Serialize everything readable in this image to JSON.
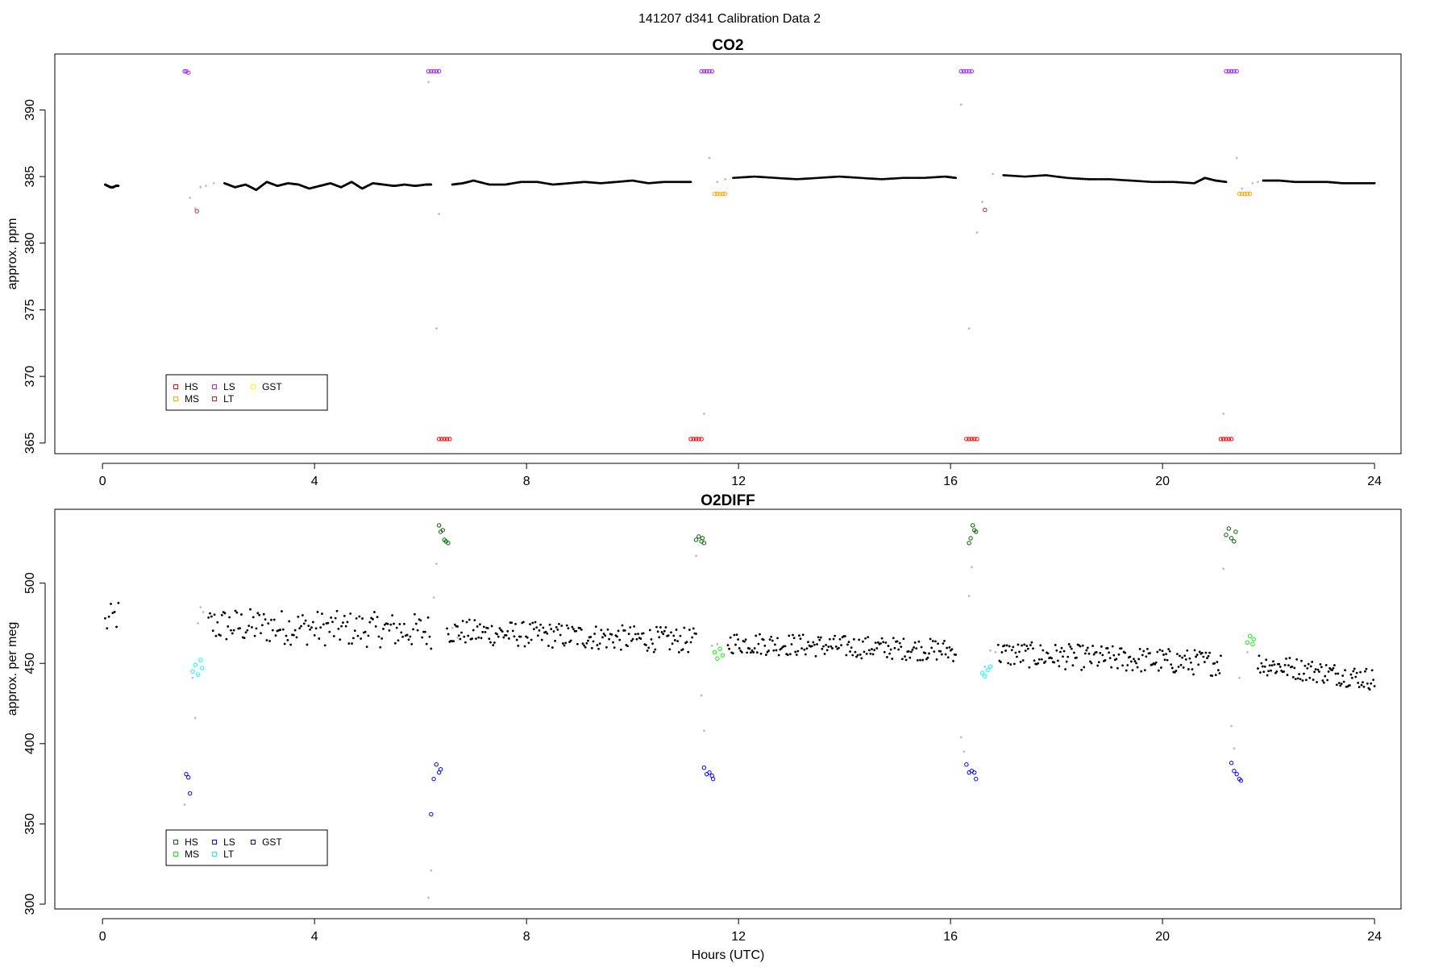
{
  "figure": {
    "title": "141207   d341   Calibration Data 2"
  },
  "chart_data": [
    {
      "type": "scatter",
      "title": "CO2",
      "xlabel": "",
      "ylabel": "approx. ppm",
      "xlim": [
        -0.9,
        24.5
      ],
      "ylim": [
        364.2,
        394.2
      ],
      "xticks": [
        0,
        4,
        8,
        12,
        16,
        20,
        24
      ],
      "yticks": [
        365,
        370,
        375,
        380,
        385,
        390
      ],
      "legend": {
        "position": "bottom-left",
        "entries": [
          {
            "label": "HS",
            "color": "#ff0000"
          },
          {
            "label": "MS",
            "color": "#ffa500"
          },
          {
            "label": "LS",
            "color": "#a020f0"
          },
          {
            "label": "LT",
            "color": "#b22222"
          },
          {
            "label": "GST",
            "color": "#ffff00"
          }
        ]
      },
      "colors": {
        "sample": "#000000",
        "transition": "#bebebe",
        "HS": "#ff0000",
        "MS": "#ffa500",
        "LS": "#a020f0",
        "LT": "#b22222"
      },
      "series": [
        {
          "role": "sample",
          "segments": [
            {
              "x": [
                0.05,
                0.1,
                0.15,
                0.2,
                0.25,
                0.3
              ],
              "y": [
                384.4,
                384.3,
                384.2,
                384.2,
                384.3,
                384.3
              ]
            },
            {
              "x": [
                2.3,
                2.5,
                2.7,
                2.9,
                3.1,
                3.3,
                3.5,
                3.7,
                3.9,
                4.1,
                4.3,
                4.5,
                4.7,
                4.9,
                5.1,
                5.3,
                5.5,
                5.7,
                5.9,
                6.1,
                6.2
              ],
              "y": [
                384.5,
                384.2,
                384.4,
                384.0,
                384.6,
                384.3,
                384.5,
                384.4,
                384.1,
                384.3,
                384.5,
                384.2,
                384.6,
                384.1,
                384.5,
                384.4,
                384.3,
                384.4,
                384.3,
                384.4,
                384.4
              ]
            },
            {
              "x": [
                6.6,
                6.8,
                7.0,
                7.3,
                7.6,
                7.9,
                8.2,
                8.5,
                8.8,
                9.1,
                9.4,
                9.7,
                10.0,
                10.3,
                10.6,
                10.9,
                11.1
              ],
              "y": [
                384.4,
                384.5,
                384.7,
                384.4,
                384.4,
                384.6,
                384.6,
                384.4,
                384.5,
                384.6,
                384.5,
                384.6,
                384.7,
                384.5,
                384.6,
                384.6,
                384.6
              ]
            },
            {
              "x": [
                11.9,
                12.3,
                12.7,
                13.1,
                13.5,
                13.9,
                14.3,
                14.7,
                15.1,
                15.5,
                15.9,
                16.1
              ],
              "y": [
                384.9,
                385.0,
                384.9,
                384.8,
                384.9,
                385.0,
                384.9,
                384.8,
                384.9,
                384.9,
                385.0,
                384.9
              ]
            },
            {
              "x": [
                17.0,
                17.4,
                17.8,
                18.2,
                18.6,
                19.0,
                19.4,
                19.8,
                20.2,
                20.6,
                20.8,
                21.0,
                21.2
              ],
              "y": [
                385.1,
                385.0,
                385.1,
                384.9,
                384.8,
                384.8,
                384.7,
                384.6,
                384.6,
                384.5,
                384.9,
                384.7,
                384.6
              ]
            },
            {
              "x": [
                21.9,
                22.2,
                22.5,
                22.8,
                23.1,
                23.4,
                23.7,
                24.0
              ],
              "y": [
                384.7,
                384.7,
                384.6,
                384.6,
                384.6,
                384.5,
                384.5,
                384.5
              ]
            }
          ]
        },
        {
          "role": "transition",
          "x": [
            1.65,
            1.75,
            1.85,
            1.95,
            2.1,
            6.15,
            6.3,
            6.35,
            11.35,
            11.45,
            11.6,
            11.75,
            16.2,
            16.35,
            16.5,
            16.6,
            16.8,
            21.15,
            21.4,
            21.5,
            21.7,
            21.8
          ],
          "y": [
            383.4,
            382.6,
            384.2,
            384.3,
            384.5,
            392.1,
            373.6,
            382.2,
            367.2,
            386.4,
            384.6,
            384.8,
            390.4,
            373.6,
            380.8,
            383.1,
            385.2,
            367.2,
            386.4,
            384.1,
            384.5,
            384.6
          ]
        },
        {
          "role": "LS",
          "name": "LS",
          "x": [
            1.55,
            1.58,
            1.62,
            6.15,
            6.2,
            6.25,
            6.3,
            6.35,
            11.3,
            11.35,
            11.4,
            11.45,
            11.5,
            16.2,
            16.25,
            16.3,
            16.35,
            16.4,
            21.2,
            21.25,
            21.3,
            21.35,
            21.4
          ],
          "y": [
            392.9,
            392.9,
            392.8,
            392.9,
            392.9,
            392.9,
            392.9,
            392.9,
            392.9,
            392.9,
            392.9,
            392.9,
            392.9,
            392.9,
            392.9,
            392.9,
            392.9,
            392.9,
            392.9,
            392.9,
            392.9,
            392.9,
            392.9
          ]
        },
        {
          "role": "HS",
          "name": "HS",
          "x": [
            6.35,
            6.4,
            6.45,
            6.5,
            6.55,
            11.1,
            11.15,
            11.2,
            11.25,
            11.3,
            16.3,
            16.35,
            16.4,
            16.45,
            16.5,
            21.1,
            21.15,
            21.2,
            21.25,
            21.3
          ],
          "y": [
            365.3,
            365.3,
            365.3,
            365.3,
            365.3,
            365.3,
            365.3,
            365.3,
            365.3,
            365.3,
            365.3,
            365.3,
            365.3,
            365.3,
            365.3,
            365.3,
            365.3,
            365.3,
            365.3,
            365.3
          ]
        },
        {
          "role": "MS",
          "name": "MS",
          "x": [
            11.55,
            11.6,
            11.65,
            11.7,
            11.75,
            21.45,
            21.5,
            21.55,
            21.6,
            21.65
          ],
          "y": [
            383.7,
            383.7,
            383.7,
            383.7,
            383.7,
            383.7,
            383.7,
            383.7,
            383.7,
            383.7
          ]
        },
        {
          "role": "LT",
          "name": "LT",
          "x": [
            1.78,
            16.65
          ],
          "y": [
            382.4,
            382.5
          ]
        }
      ]
    },
    {
      "type": "scatter",
      "title": "O2DIFF",
      "xlabel": "Hours (UTC)",
      "ylabel": "approx. per meg",
      "xlim": [
        -0.9,
        24.5
      ],
      "ylim": [
        297,
        546
      ],
      "xticks": [
        0,
        4,
        8,
        12,
        16,
        20,
        24
      ],
      "yticks": [
        300,
        350,
        400,
        450,
        500
      ],
      "legend": {
        "position": "bottom-left",
        "entries": [
          {
            "label": "HS",
            "color": "#006400"
          },
          {
            "label": "MS",
            "color": "#00ff00"
          },
          {
            "label": "LS",
            "color": "#0000ff"
          },
          {
            "label": "LT",
            "color": "#00ffff"
          },
          {
            "label": "GST",
            "color": "#00008b"
          }
        ]
      },
      "colors": {
        "sample": "#000000",
        "transition": "#bebebe",
        "HS": "#006400",
        "MS": "#00ff00",
        "LS": "#0000ff",
        "LT": "#00ffff"
      },
      "series": [
        {
          "role": "sample",
          "trend": [
            {
              "x0": 0.05,
              "x1": 0.3,
              "y0": 475,
              "y1": 480,
              "n": 8,
              "spread": 10
            },
            {
              "x0": 2.0,
              "x1": 6.2,
              "y0": 474,
              "y1": 470,
              "n": 150,
              "spread": 11
            },
            {
              "x0": 6.5,
              "x1": 11.2,
              "y0": 470,
              "y1": 464,
              "n": 190,
              "spread": 8
            },
            {
              "x0": 11.8,
              "x1": 16.1,
              "y0": 463,
              "y1": 458,
              "n": 180,
              "spread": 7
            },
            {
              "x0": 16.9,
              "x1": 21.1,
              "y0": 456,
              "y1": 450,
              "n": 180,
              "spread": 8
            },
            {
              "x0": 21.8,
              "x1": 24.0,
              "y0": 450,
              "y1": 440,
              "n": 100,
              "spread": 7
            }
          ]
        },
        {
          "role": "transition",
          "x": [
            1.55,
            1.7,
            1.75,
            1.8,
            1.85,
            1.9,
            6.15,
            6.2,
            6.25,
            6.3,
            6.6,
            6.7,
            11.2,
            11.3,
            11.35,
            11.5,
            11.6,
            16.2,
            16.25,
            16.35,
            16.4,
            16.65,
            16.75,
            16.85,
            21.15,
            21.3,
            21.35,
            21.45,
            21.6
          ],
          "y": [
            362,
            441,
            416,
            475,
            485,
            482,
            304,
            321,
            491,
            512,
            472,
            466,
            517,
            430,
            408,
            461,
            462,
            404,
            395,
            492,
            510,
            448,
            458,
            457,
            509,
            411,
            397,
            441,
            457
          ]
        },
        {
          "role": "HS",
          "name": "HS",
          "x": [
            6.35,
            6.38,
            6.42,
            6.45,
            6.48,
            6.52,
            11.2,
            11.25,
            11.3,
            11.32,
            11.35,
            16.35,
            16.38,
            16.42,
            16.45,
            16.48,
            21.2,
            21.25,
            21.3,
            21.35,
            21.38
          ],
          "y": [
            536,
            532,
            533,
            527,
            526,
            525,
            527,
            529,
            526,
            528,
            525,
            525,
            528,
            536,
            533,
            532,
            530,
            534,
            528,
            526,
            532
          ]
        },
        {
          "role": "MS",
          "name": "MS",
          "x": [
            11.55,
            11.6,
            11.65,
            11.7,
            21.6,
            21.65,
            21.7,
            21.72
          ],
          "y": [
            457,
            453,
            459,
            455,
            463,
            467,
            462,
            465
          ]
        },
        {
          "role": "LS",
          "name": "LS",
          "x": [
            1.58,
            1.62,
            1.65,
            6.2,
            6.25,
            6.3,
            6.35,
            6.38,
            11.35,
            11.4,
            11.45,
            11.5,
            11.52,
            16.3,
            16.35,
            16.4,
            16.45,
            16.48,
            21.3,
            21.35,
            21.4,
            21.45,
            21.48
          ],
          "y": [
            381,
            379,
            369,
            356,
            378,
            387,
            382,
            384,
            385,
            381,
            382,
            380,
            378,
            387,
            382,
            383,
            382,
            378,
            388,
            383,
            381,
            378,
            377
          ]
        },
        {
          "role": "LT",
          "name": "LT",
          "x": [
            1.7,
            1.75,
            1.8,
            1.85,
            1.88,
            16.6,
            16.65,
            16.7,
            16.75
          ],
          "y": [
            445,
            449,
            443,
            452,
            447,
            444,
            442,
            446,
            448
          ]
        }
      ]
    }
  ]
}
